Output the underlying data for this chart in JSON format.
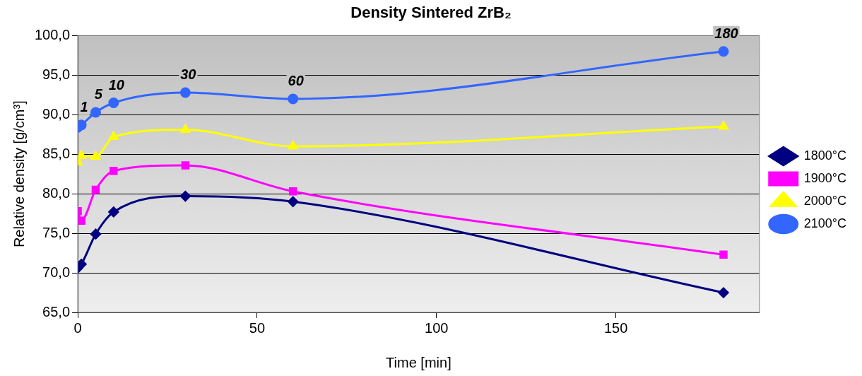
{
  "chart_data": {
    "type": "line",
    "title": "Density Sintered ZrB₂",
    "xlabel": "Time [min]",
    "ylabel": "Relative density [g/cm³]",
    "x": [
      0,
      1,
      5,
      10,
      30,
      60,
      180
    ],
    "series": [
      {
        "name": "1800°C",
        "color": "#000080",
        "marker": "diamond",
        "values": [
          70.6,
          71.1,
          74.9,
          77.7,
          79.7,
          79.0,
          67.5
        ]
      },
      {
        "name": "1900°C",
        "color": "#ff00ff",
        "marker": "square",
        "values": [
          77.8,
          76.6,
          80.5,
          82.9,
          83.6,
          80.3,
          72.3
        ]
      },
      {
        "name": "2000°C",
        "color": "#ffff00",
        "marker": "triangle",
        "values": [
          84.0,
          84.8,
          84.7,
          87.2,
          88.1,
          86.0,
          88.5
        ]
      },
      {
        "name": "2100°C",
        "color": "#3366ff",
        "marker": "circle",
        "values": [
          88.4,
          88.7,
          90.3,
          91.5,
          92.8,
          92.0,
          98.0
        ]
      }
    ],
    "xlim": [
      0,
      190
    ],
    "xticks": [
      0,
      50,
      100,
      150
    ],
    "ylim": [
      65,
      100
    ],
    "yticks": [
      {
        "value": 65,
        "label": "65,0"
      },
      {
        "value": 70,
        "label": "70,0"
      },
      {
        "value": 75,
        "label": "75,0"
      },
      {
        "value": 80,
        "label": "80,0"
      },
      {
        "value": 85,
        "label": "85,0"
      },
      {
        "value": 90,
        "label": "90,0"
      },
      {
        "value": 95,
        "label": "95,0"
      },
      {
        "value": 100,
        "label": "100,0"
      }
    ],
    "grid": "y",
    "legend": "right",
    "line_style": "solid",
    "annotations": [
      {
        "text": "1",
        "x": 1,
        "y": 88.7
      },
      {
        "text": "5",
        "x": 5,
        "y": 90.3
      },
      {
        "text": "10",
        "x": 10,
        "y": 91.5
      },
      {
        "text": "30",
        "x": 30,
        "y": 92.8
      },
      {
        "text": "60",
        "x": 60,
        "y": 92.0
      },
      {
        "text": "180",
        "x": 180,
        "y": 98.0
      }
    ]
  }
}
